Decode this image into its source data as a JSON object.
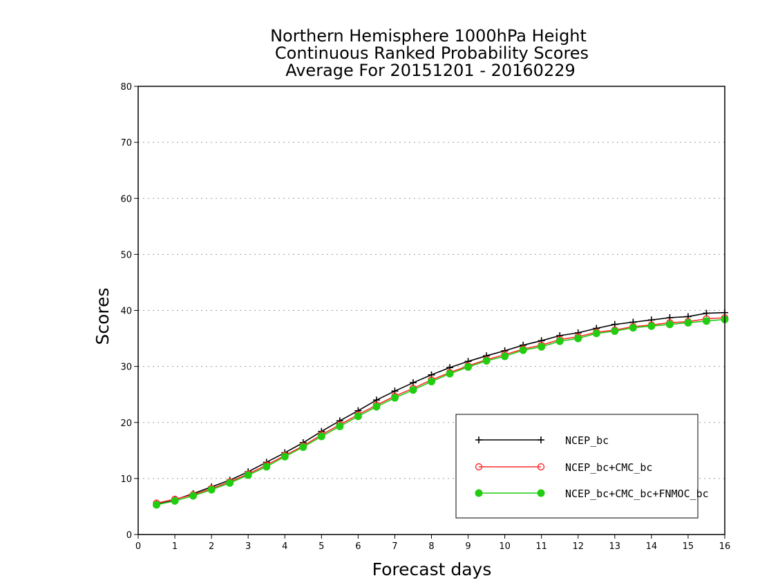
{
  "chart_data": {
    "type": "line",
    "title": [
      "Northern Hemisphere 1000hPa Height",
      "Continuous Ranked Probability Scores",
      "Average For 20151201 - 20160229"
    ],
    "xlabel": "Forecast days",
    "ylabel": "Scores",
    "xlim": [
      0,
      16
    ],
    "ylim": [
      0,
      80
    ],
    "xticks": [
      "0",
      "1",
      "2",
      "3",
      "4",
      "5",
      "6",
      "7",
      "8",
      "9",
      "10",
      "11",
      "12",
      "13",
      "14",
      "15",
      "16"
    ],
    "yticks": [
      "0",
      "10",
      "20",
      "30",
      "40",
      "50",
      "60",
      "70",
      "80"
    ],
    "grid": "horizontal-dotted",
    "legend_position": "bottom-right",
    "x": [
      0.5,
      1,
      1.5,
      2,
      2.5,
      3,
      3.5,
      4,
      4.5,
      5,
      5.5,
      6,
      6.5,
      7,
      7.5,
      8,
      8.5,
      9,
      9.5,
      10,
      10.5,
      11,
      11.5,
      12,
      12.5,
      13,
      13.5,
      14,
      14.5,
      15,
      15.5,
      16
    ],
    "series": [
      {
        "name": "NCEP_bc",
        "color": "#000000",
        "marker": "plus",
        "values": [
          5.5,
          6.2,
          7.3,
          8.5,
          9.7,
          11.2,
          12.9,
          14.6,
          16.4,
          18.4,
          20.3,
          22.1,
          24.0,
          25.6,
          27.1,
          28.5,
          29.8,
          30.9,
          31.9,
          32.8,
          33.8,
          34.6,
          35.5,
          36.0,
          36.8,
          37.5,
          37.9,
          38.3,
          38.7,
          38.9,
          39.5,
          39.6
        ]
      },
      {
        "name": "NCEP_bc+CMC_bc",
        "color": "#ff2a2a",
        "marker": "open-circle",
        "values": [
          5.6,
          6.3,
          7.1,
          8.2,
          9.4,
          10.8,
          12.4,
          14.1,
          15.8,
          17.8,
          19.6,
          21.4,
          23.1,
          24.7,
          26.1,
          27.6,
          28.9,
          30.1,
          31.2,
          32.1,
          33.1,
          33.8,
          34.8,
          35.3,
          36.1,
          36.5,
          37.1,
          37.4,
          37.8,
          38.0,
          38.5,
          38.7
        ]
      },
      {
        "name": "NCEP_bc+CMC_bc+FNMOC_bc",
        "color": "#22cc11",
        "marker": "filled-circle",
        "values": [
          5.3,
          6.0,
          6.9,
          8.0,
          9.2,
          10.6,
          12.1,
          13.9,
          15.6,
          17.5,
          19.3,
          21.1,
          22.8,
          24.4,
          25.8,
          27.3,
          28.7,
          29.9,
          31.0,
          31.8,
          32.9,
          33.5,
          34.5,
          35.0,
          35.9,
          36.3,
          36.9,
          37.2,
          37.5,
          37.8,
          38.1,
          38.4
        ]
      }
    ]
  }
}
